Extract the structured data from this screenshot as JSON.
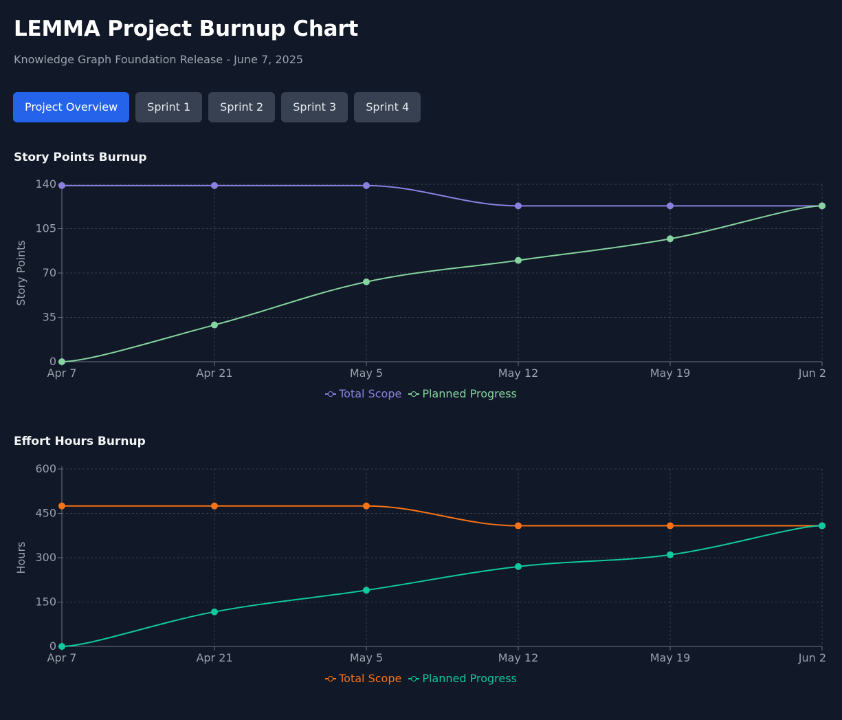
{
  "header": {
    "title": "LEMMA Project Burnup Chart",
    "subtitle": "Knowledge Graph Foundation Release - June 7, 2025"
  },
  "tabs": [
    {
      "label": "Project Overview",
      "active": true
    },
    {
      "label": "Sprint 1",
      "active": false
    },
    {
      "label": "Sprint 2",
      "active": false
    },
    {
      "label": "Sprint 3",
      "active": false
    },
    {
      "label": "Sprint 4",
      "active": false
    }
  ],
  "colors": {
    "background": "#111827",
    "tab_active": "#2563eb",
    "tab_inactive": "#374151",
    "grid": "#374151",
    "axis": "#6b7280",
    "tick_text": "#9ca3af"
  },
  "chart_data": [
    {
      "type": "line",
      "title": "Story Points Burnup",
      "xlabel": "",
      "ylabel": "Story Points",
      "x": [
        "Apr 7",
        "Apr 21",
        "May 5",
        "May 12",
        "May 19",
        "Jun 2"
      ],
      "ylim": [
        0,
        140
      ],
      "yticks": [
        0,
        35,
        70,
        105,
        140
      ],
      "grid": true,
      "legend": "bottom-center",
      "series": [
        {
          "name": "Total Scope",
          "color": "#8b80e0",
          "values": [
            139,
            139,
            139,
            123,
            123,
            123
          ]
        },
        {
          "name": "Planned Progress",
          "color": "#86d4a0",
          "values": [
            0,
            29,
            63,
            80,
            97,
            123
          ]
        }
      ]
    },
    {
      "type": "line",
      "title": "Effort Hours Burnup",
      "xlabel": "",
      "ylabel": "Hours",
      "x": [
        "Apr 7",
        "Apr 21",
        "May 5",
        "May 12",
        "May 19",
        "Jun 2"
      ],
      "ylim": [
        0,
        600
      ],
      "yticks": [
        0,
        150,
        300,
        450,
        600
      ],
      "grid": true,
      "legend": "bottom-center",
      "series": [
        {
          "name": "Total Scope",
          "color": "#f97316",
          "values": [
            475,
            475,
            475,
            408,
            408,
            408
          ]
        },
        {
          "name": "Planned Progress",
          "color": "#10c9a0",
          "values": [
            0,
            117,
            190,
            270,
            310,
            408
          ]
        }
      ]
    }
  ]
}
